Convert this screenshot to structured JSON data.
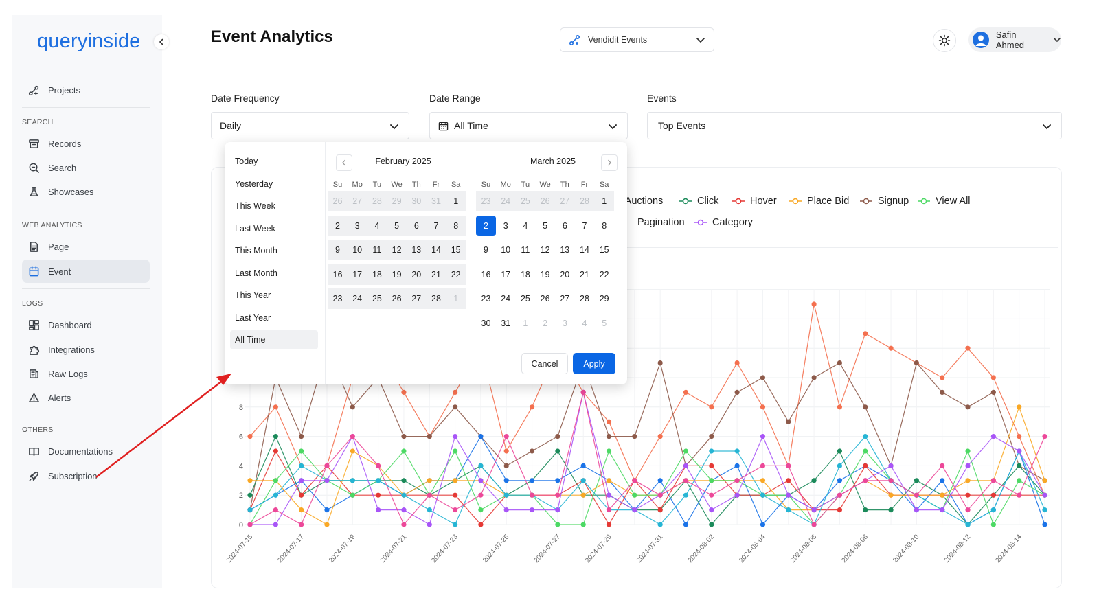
{
  "sidebar": {
    "logo": "queryinside",
    "projects_label": "Projects",
    "sections": {
      "search": "SEARCH",
      "web_analytics": "WEB ANALYTICS",
      "logs": "LOGS",
      "others": "OTHERS"
    },
    "items": {
      "records": "Records",
      "search": "Search",
      "showcases": "Showcases",
      "page": "Page",
      "event": "Event",
      "dashboard": "Dashboard",
      "integrations": "Integrations",
      "raw_logs": "Raw Logs",
      "alerts": "Alerts",
      "documentations": "Documentations",
      "subscription": "Subscription"
    },
    "active_item": "event"
  },
  "header": {
    "title": "Event Analytics",
    "project": "Vendidit Events",
    "user": "Safin Ahmed"
  },
  "filters": {
    "date_frequency": {
      "label": "Date Frequency",
      "value": "Daily"
    },
    "date_range": {
      "label": "Date Range",
      "value": "All Time"
    },
    "events": {
      "label": "Events",
      "value": "Top Events"
    }
  },
  "date_picker": {
    "presets": [
      "Today",
      "Yesterday",
      "This Week",
      "Last Week",
      "This Month",
      "Last Month",
      "This Year",
      "Last Year",
      "All Time"
    ],
    "active_preset": "All Time",
    "weekdays": [
      "Su",
      "Mo",
      "Tu",
      "We",
      "Th",
      "Fr",
      "Sa"
    ],
    "left_month": {
      "title": "February 2025",
      "weeks": [
        [
          [
            "26",
            "o"
          ],
          [
            "27",
            "o"
          ],
          [
            "28",
            "o"
          ],
          [
            "29",
            "o"
          ],
          [
            "30",
            "o"
          ],
          [
            "31",
            "o"
          ],
          [
            "1",
            "r"
          ]
        ],
        [
          [
            "2",
            "r"
          ],
          [
            "3",
            "r"
          ],
          [
            "4",
            "r"
          ],
          [
            "5",
            "r"
          ],
          [
            "6",
            "r"
          ],
          [
            "7",
            "r"
          ],
          [
            "8",
            "r"
          ]
        ],
        [
          [
            "9",
            "r"
          ],
          [
            "10",
            "r"
          ],
          [
            "11",
            "r"
          ],
          [
            "12",
            "r"
          ],
          [
            "13",
            "r"
          ],
          [
            "14",
            "r"
          ],
          [
            "15",
            "r"
          ]
        ],
        [
          [
            "16",
            "r"
          ],
          [
            "17",
            "r"
          ],
          [
            "18",
            "r"
          ],
          [
            "19",
            "r"
          ],
          [
            "20",
            "r"
          ],
          [
            "21",
            "r"
          ],
          [
            "22",
            "r"
          ]
        ],
        [
          [
            "23",
            "r"
          ],
          [
            "24",
            "r"
          ],
          [
            "25",
            "r"
          ],
          [
            "26",
            "r"
          ],
          [
            "27",
            "r"
          ],
          [
            "28",
            "r"
          ],
          [
            "1",
            "o"
          ]
        ]
      ]
    },
    "right_month": {
      "title": "March 2025",
      "weeks": [
        [
          [
            "23",
            "o"
          ],
          [
            "24",
            "o"
          ],
          [
            "25",
            "o"
          ],
          [
            "26",
            "o"
          ],
          [
            "27",
            "o"
          ],
          [
            "28",
            "o"
          ],
          [
            "1",
            "r"
          ]
        ],
        [
          [
            "2",
            "s"
          ],
          [
            "3",
            "n"
          ],
          [
            "4",
            "n"
          ],
          [
            "5",
            "n"
          ],
          [
            "6",
            "n"
          ],
          [
            "7",
            "n"
          ],
          [
            "8",
            "n"
          ]
        ],
        [
          [
            "9",
            "n"
          ],
          [
            "10",
            "n"
          ],
          [
            "11",
            "n"
          ],
          [
            "12",
            "n"
          ],
          [
            "13",
            "n"
          ],
          [
            "14",
            "n"
          ],
          [
            "15",
            "n"
          ]
        ],
        [
          [
            "16",
            "n"
          ],
          [
            "17",
            "n"
          ],
          [
            "18",
            "n"
          ],
          [
            "19",
            "n"
          ],
          [
            "20",
            "n"
          ],
          [
            "21",
            "n"
          ],
          [
            "22",
            "n"
          ]
        ],
        [
          [
            "23",
            "n"
          ],
          [
            "24",
            "n"
          ],
          [
            "25",
            "n"
          ],
          [
            "26",
            "n"
          ],
          [
            "27",
            "n"
          ],
          [
            "28",
            "n"
          ],
          [
            "29",
            "n"
          ]
        ],
        [
          [
            "30",
            "n"
          ],
          [
            "31",
            "n"
          ],
          [
            "1",
            "o"
          ],
          [
            "2",
            "o"
          ],
          [
            "3",
            "o"
          ],
          [
            "4",
            "o"
          ],
          [
            "5",
            "o"
          ]
        ]
      ]
    },
    "cancel_label": "Cancel",
    "apply_label": "Apply"
  },
  "colors": {
    "accent": "#0a66e4",
    "series": {
      "all_auctions": "#1a73e8",
      "click": "#1b8a5a",
      "hover": "#e53935",
      "place_bid": "#f9a825",
      "signup": "#8d5a4a",
      "view_all": "#4cd964",
      "pagination": "#26b5d4",
      "category": "#a855f7",
      "extra_pink": "#ec4899",
      "extra_orange": "#f4704f"
    }
  },
  "chart_data": {
    "type": "line",
    "legend": {
      "row1": [
        "ll Auctions",
        "Click",
        "Hover",
        "Place Bid",
        "Signup",
        "View All"
      ],
      "row2": [
        "Pagination",
        "Category"
      ]
    },
    "x": [
      "2024-07-15",
      "2024-07-16",
      "2024-07-17",
      "2024-07-18",
      "2024-07-19",
      "2024-07-20",
      "2024-07-21",
      "2024-07-22",
      "2024-07-23",
      "2024-07-24",
      "2024-07-25",
      "2024-07-26",
      "2024-07-27",
      "2024-07-28",
      "2024-07-29",
      "2024-07-30",
      "2024-07-31",
      "2024-08-01",
      "2024-08-02",
      "2024-08-03",
      "2024-08-04",
      "2024-08-05",
      "2024-08-06",
      "2024-08-07",
      "2024-08-08",
      "2024-08-09",
      "2024-08-10",
      "2024-08-11",
      "2024-08-12",
      "2024-08-13",
      "2024-08-14",
      "2024-08-15"
    ],
    "x_tick_labels": [
      "2024-07-15",
      "2024-07-17",
      "2024-07-19",
      "2024-07-21",
      "2024-07-23",
      "2024-07-25",
      "2024-07-27",
      "2024-07-29",
      "2024-07-31",
      "2024-08-02",
      "2024-08-04",
      "2024-08-06",
      "2024-08-08",
      "2024-08-10",
      "2024-08-12",
      "2024-08-14"
    ],
    "y_ticks": [
      "0",
      "2",
      "4",
      "6",
      "8"
    ],
    "ylim": [
      0,
      16
    ],
    "series": [
      {
        "key": "extra_orange",
        "values": [
          6,
          8,
          4,
          4,
          10,
          12,
          9,
          6,
          9,
          12,
          5,
          8,
          12,
          9,
          7,
          3,
          6,
          9,
          8,
          11,
          8,
          4,
          15,
          8,
          13,
          12,
          11,
          10,
          12,
          10,
          6,
          2
        ]
      },
      {
        "key": "signup",
        "values": [
          1,
          10,
          6,
          12,
          8,
          10,
          6,
          6,
          8,
          6,
          4,
          5,
          6,
          11,
          6,
          6,
          11,
          4,
          6,
          9,
          10,
          7,
          10,
          11,
          8,
          4,
          11,
          9,
          8,
          9,
          4,
          3
        ]
      },
      {
        "key": "click",
        "values": [
          2,
          6,
          2,
          3,
          3,
          3,
          3,
          2,
          3,
          4,
          2,
          3,
          5,
          2,
          2,
          1,
          1,
          3,
          0,
          2,
          2,
          2,
          3,
          5,
          1,
          1,
          3,
          2,
          0,
          2,
          4,
          2
        ]
      },
      {
        "key": "all_auctions",
        "values": [
          1,
          2,
          3,
          1,
          2,
          3,
          2,
          3,
          3,
          6,
          3,
          3,
          3,
          4,
          3,
          1,
          3,
          0,
          3,
          4,
          0,
          2,
          1,
          3,
          4,
          3,
          1,
          3,
          0,
          1,
          5,
          0
        ]
      },
      {
        "key": "hover",
        "values": [
          1,
          5,
          2,
          4,
          2,
          2,
          2,
          2,
          2,
          0,
          2,
          2,
          2,
          3,
          0,
          3,
          1,
          4,
          4,
          2,
          2,
          3,
          1,
          1,
          4,
          2,
          2,
          2,
          2,
          2,
          2,
          2
        ]
      },
      {
        "key": "place_bid",
        "values": [
          3,
          3,
          1,
          0,
          5,
          4,
          2,
          3,
          3,
          3,
          2,
          2,
          2,
          2,
          3,
          2,
          2,
          3,
          3,
          3,
          3,
          1,
          1,
          2,
          3,
          2,
          2,
          2,
          3,
          3,
          8,
          3
        ]
      },
      {
        "key": "view_all",
        "values": [
          0,
          3,
          5,
          3,
          2,
          3,
          5,
          2,
          5,
          1,
          2,
          2,
          0,
          0,
          5,
          2,
          2,
          5,
          3,
          3,
          2,
          2,
          0,
          2,
          5,
          3,
          2,
          1,
          5,
          0,
          3,
          2
        ]
      },
      {
        "key": "pagination",
        "values": [
          1,
          2,
          4,
          3,
          3,
          3,
          2,
          1,
          0,
          4,
          2,
          2,
          1,
          3,
          1,
          1,
          0,
          2,
          5,
          5,
          2,
          1,
          0,
          4,
          6,
          3,
          2,
          1,
          0,
          1,
          5,
          1
        ]
      },
      {
        "key": "category",
        "values": [
          0,
          0,
          3,
          3,
          6,
          1,
          1,
          0,
          6,
          3,
          1,
          1,
          1,
          9,
          2,
          1,
          2,
          4,
          1,
          2,
          6,
          2,
          1,
          2,
          3,
          4,
          1,
          1,
          4,
          6,
          5,
          2
        ]
      },
      {
        "key": "extra_pink",
        "values": [
          0,
          1,
          0,
          4,
          6,
          4,
          0,
          2,
          1,
          2,
          6,
          2,
          2,
          9,
          1,
          3,
          2,
          3,
          2,
          3,
          4,
          4,
          0,
          2,
          3,
          3,
          2,
          4,
          1,
          3,
          2,
          6
        ]
      }
    ]
  }
}
